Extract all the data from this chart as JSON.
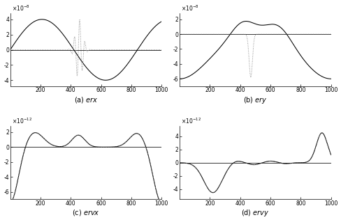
{
  "subplots": [
    {
      "label_paren": "(a)",
      "label_name": "erx",
      "ylabel_exp": -8,
      "ylim": [
        -4.8e-08,
        4.8e-08
      ],
      "yticks": [
        -4e-08,
        -2e-08,
        0,
        2e-08,
        4e-08
      ],
      "ytick_labels": [
        "-4",
        "-2",
        "0",
        "2",
        "4"
      ],
      "xticks": [
        200,
        400,
        600,
        800,
        1000
      ]
    },
    {
      "label_paren": "(b)",
      "label_name": "ery",
      "ylabel_exp": -8,
      "ylim": [
        -7e-08,
        2.8e-08
      ],
      "yticks": [
        -6e-08,
        -4e-08,
        -2e-08,
        0,
        2e-08
      ],
      "ytick_labels": [
        "-6",
        "-4",
        "-2",
        "0",
        "2"
      ],
      "xticks": [
        200,
        400,
        600,
        800,
        1000
      ]
    },
    {
      "label_paren": "(c)",
      "label_name": "ervx",
      "ylabel_exp": -12,
      "ylim": [
        -7e-12,
        2.8e-12
      ],
      "yticks": [
        -6e-12,
        -4e-12,
        -2e-12,
        0,
        2e-12
      ],
      "ytick_labels": [
        "-6",
        "-4",
        "-2",
        "0",
        "2"
      ],
      "xticks": [
        200,
        400,
        600,
        800,
        1000
      ]
    },
    {
      "label_paren": "(d)",
      "label_name": "ervy",
      "ylabel_exp": -12,
      "ylim": [
        -5.5e-12,
        5.5e-12
      ],
      "yticks": [
        -4e-12,
        -2e-12,
        0,
        2e-12,
        4e-12
      ],
      "ytick_labels": [
        "-4",
        "-2",
        "0",
        "2",
        "4"
      ],
      "xticks": [
        200,
        400,
        600,
        800,
        1000
      ]
    }
  ],
  "xmin": 0,
  "xmax": 1000,
  "background": "#ffffff"
}
